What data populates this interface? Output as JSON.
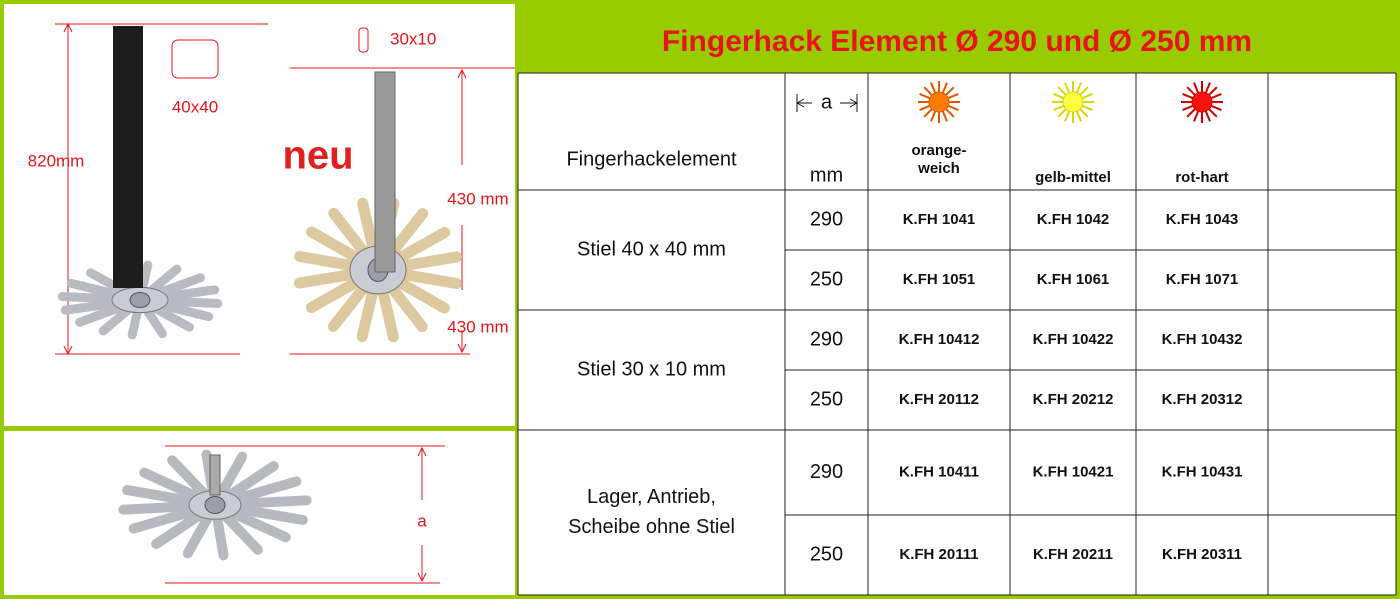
{
  "title": "Fingerhack Element Ø 290 und Ø 250 mm",
  "image_labels": {
    "stick_40": "40x40",
    "total_height": "820mm",
    "stick_30": "30x10",
    "badge": "neu",
    "upper_height": "430 mm",
    "lower_height": "430 mm",
    "disc_dimension": "a"
  },
  "table": {
    "header": {
      "product": "Fingerhackelement",
      "dimension": "a",
      "unit": "mm",
      "variants": [
        [
          "orange-",
          "weich"
        ],
        [
          "gelb-mittel"
        ],
        [
          "rot-hart"
        ]
      ]
    },
    "groups": [
      {
        "label": [
          "Stiel 40 x 40 mm"
        ],
        "rows": [
          {
            "a": 290,
            "codes": [
              "K.FH 1041",
              "K.FH 1042",
              "K.FH 1043"
            ]
          },
          {
            "a": 250,
            "codes": [
              "K.FH 1051",
              "K.FH 1061",
              "K.FH 1071"
            ]
          }
        ]
      },
      {
        "label": [
          "Stiel 30 x 10 mm"
        ],
        "rows": [
          {
            "a": 290,
            "codes": [
              "K.FH 10412",
              "K.FH 10422",
              "K.FH 10432"
            ]
          },
          {
            "a": 250,
            "codes": [
              "K.FH 20112",
              "K.FH 20212",
              "K.FH 20312"
            ]
          }
        ]
      },
      {
        "label": [
          "Lager, Antrieb,",
          "Scheibe ohne Stiel"
        ],
        "rows": [
          {
            "a": 290,
            "codes": [
              "K.FH 10411",
              "K.FH 10421",
              "K.FH 10431"
            ]
          },
          {
            "a": 250,
            "codes": [
              "K.FH 20111",
              "K.FH 20211",
              "K.FH 20311"
            ]
          }
        ]
      }
    ]
  }
}
